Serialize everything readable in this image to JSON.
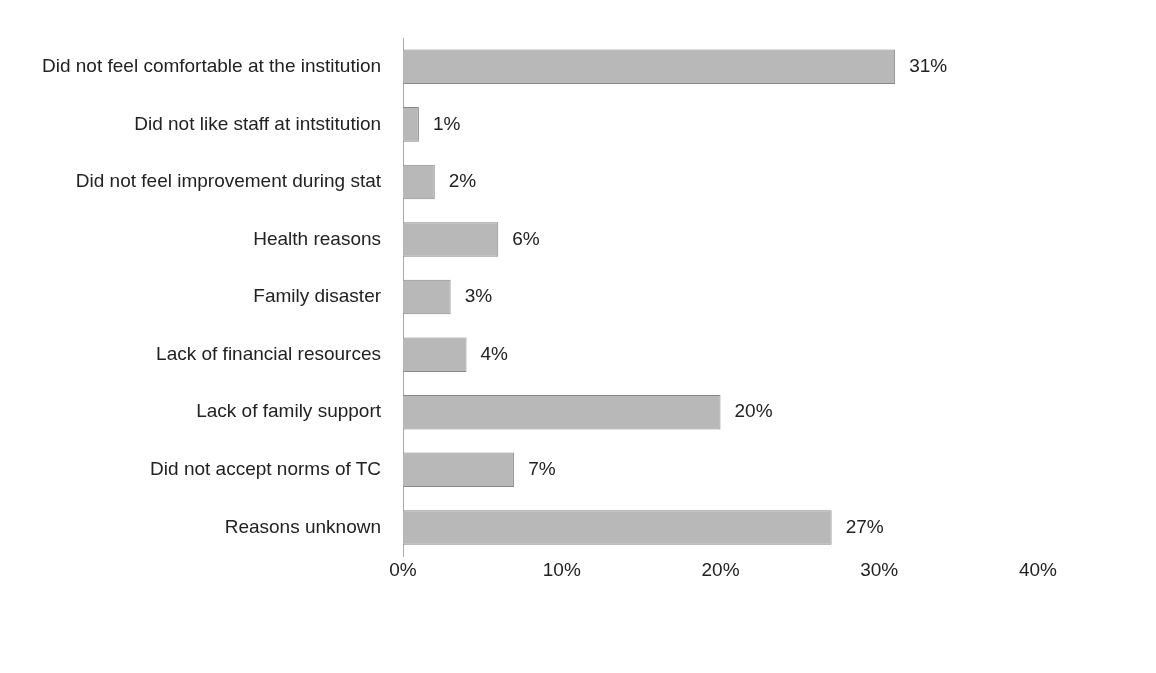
{
  "chart_data": {
    "type": "bar",
    "orientation": "horizontal",
    "categories": [
      "Did not feel comfortable at the institution",
      "Did not like staff at intstitution",
      "Did not feel improvement during stat",
      "Health reasons",
      "Family disaster",
      "Lack of financial resources",
      "Lack of family support",
      "Did not accept norms of TC",
      "Reasons unknown"
    ],
    "values": [
      31,
      1,
      2,
      6,
      3,
      4,
      20,
      7,
      27
    ],
    "value_labels": [
      "31%",
      "1%",
      "2%",
      "6%",
      "3%",
      "4%",
      "20%",
      "7%",
      "27%"
    ],
    "color": "#b8b8b8",
    "xlim": [
      0,
      40
    ],
    "xticks": [
      {
        "value": 0,
        "label": "0%"
      },
      {
        "value": 10,
        "label": "10%"
      },
      {
        "value": 20,
        "label": "20%"
      },
      {
        "value": 30,
        "label": "30%"
      },
      {
        "value": 40,
        "label": "40%"
      }
    ],
    "grid": false,
    "legend": false
  }
}
